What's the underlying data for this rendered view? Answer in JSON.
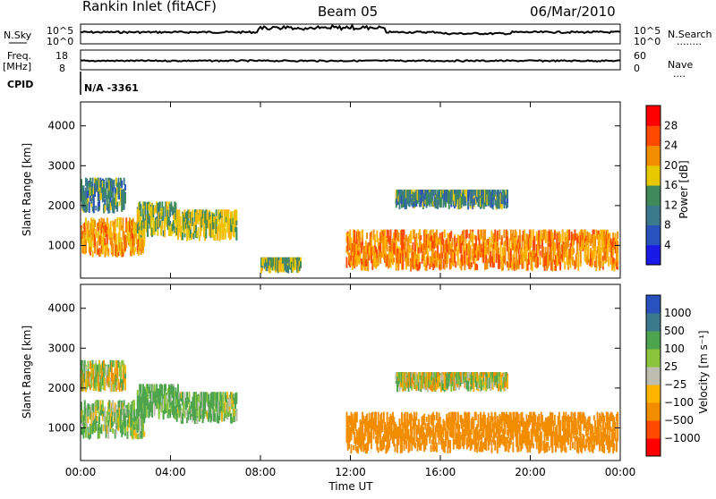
{
  "header": {
    "title": "Rankin Inlet (fitACF)",
    "beam": "Beam 05",
    "date": "06/Mar/2010"
  },
  "nsky_panel": {
    "left_label": "N.Sky",
    "left_ticks": [
      "10^5",
      "10^0"
    ],
    "right_ticks": [
      "10^5",
      "10^0"
    ],
    "right_label": "N.Search",
    "right_label_line": "........"
  },
  "freq_panel": {
    "left_label_top": "Freq.",
    "left_label_unit": "[MHz]",
    "left_ticks": [
      "18",
      "8"
    ],
    "right_ticks": [
      "60",
      "0"
    ],
    "right_label": "Nave",
    "right_label_line": "...."
  },
  "cpid_panel": {
    "label": "CPID",
    "value": "N/A -3361"
  },
  "time_axis": {
    "ticks": [
      "00:00",
      "04:00",
      "08:00",
      "12:00",
      "16:00",
      "20:00",
      "00:00"
    ],
    "label": "Time UT"
  },
  "colors": {
    "red": "#ff0000",
    "orange_red": "#ff4a00",
    "orange": "#f28d00",
    "yellow_orange": "#ffb400",
    "yellow": "#e6c800",
    "green_light": "#8ac43d",
    "green": "#4ea44e",
    "green_dark": "#3e8a5a",
    "blue_green": "#3a7a8c",
    "blue": "#2a52be",
    "blue_dark": "#1a1ae6",
    "gray": "#bdbdb0"
  },
  "chart_data": [
    {
      "type": "heatmap",
      "name": "power",
      "ylabel": "Slant Range [km]",
      "ylim": [
        180,
        4600
      ],
      "yticks": [
        "1000",
        "2000",
        "3000",
        "4000"
      ],
      "xlim_hours": [
        0,
        24
      ],
      "colorbar": {
        "label": "Power [dB]",
        "range": [
          0,
          32
        ],
        "ticks": [
          "4",
          "8",
          "12",
          "16",
          "20",
          "24",
          "28"
        ]
      },
      "echo_regions": [
        {
          "t0": 0.0,
          "t1": 2.0,
          "r0": 1800,
          "r1": 2700,
          "value": 12
        },
        {
          "t0": 0.0,
          "t1": 2.8,
          "r0": 700,
          "r1": 1700,
          "value": 24
        },
        {
          "t0": 2.5,
          "t1": 4.3,
          "r0": 1200,
          "r1": 2100,
          "value": 16
        },
        {
          "t0": 4.2,
          "t1": 6.9,
          "r0": 1100,
          "r1": 1900,
          "value": 18
        },
        {
          "t0": 8.0,
          "t1": 9.8,
          "r0": 300,
          "r1": 700,
          "value": 16
        },
        {
          "t0": 11.8,
          "t1": 23.9,
          "r0": 350,
          "r1": 1400,
          "value": 26
        },
        {
          "t0": 14.0,
          "t1": 19.0,
          "r0": 1900,
          "r1": 2400,
          "value": 12
        }
      ]
    },
    {
      "type": "heatmap",
      "name": "velocity",
      "ylabel": "Slant Range [km]",
      "ylim": [
        180,
        4600
      ],
      "yticks": [
        "1000",
        "2000",
        "3000",
        "4000"
      ],
      "xlim_hours": [
        0,
        24
      ],
      "colorbar": {
        "label": "Velocity [m s⁻¹]",
        "ticks": [
          "1000",
          "500",
          "100",
          "25",
          "−25",
          "−100",
          "−500",
          "−1000"
        ]
      },
      "echo_regions": [
        {
          "t0": 0.0,
          "t1": 2.0,
          "r0": 1900,
          "r1": 2700,
          "value": 0
        },
        {
          "t0": 0.0,
          "t1": 2.8,
          "r0": 700,
          "r1": 1700,
          "value": 100
        },
        {
          "t0": 2.5,
          "t1": 4.3,
          "r0": 1200,
          "r1": 2100,
          "value": 200
        },
        {
          "t0": 4.2,
          "t1": 6.9,
          "r0": 1100,
          "r1": 1900,
          "value": 150
        },
        {
          "t0": 11.8,
          "t1": 23.9,
          "r0": 350,
          "r1": 1400,
          "value": -300
        },
        {
          "t0": 14.0,
          "t1": 19.0,
          "r0": 1900,
          "r1": 2400,
          "value": 0
        }
      ]
    }
  ]
}
